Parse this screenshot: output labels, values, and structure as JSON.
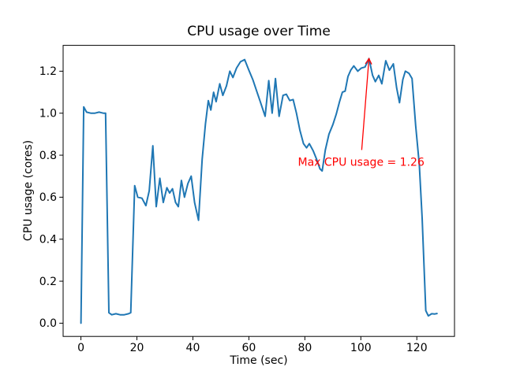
{
  "figure": {
    "background": "#ffffff"
  },
  "chart_data": {
    "type": "line",
    "title": "CPU usage over Time",
    "xlabel": "Time (sec)",
    "ylabel": "CPU usage (cores)",
    "grid": false,
    "legend": "none",
    "line_color": "#1f77b4",
    "line_width": 2,
    "xlim": [
      -6.36,
      133.46
    ],
    "ylim": [
      -0.063,
      1.323
    ],
    "xticks": {
      "values": [
        0,
        20,
        40,
        60,
        80,
        100,
        120
      ],
      "labels": [
        "0",
        "20",
        "40",
        "60",
        "80",
        "100",
        "120"
      ]
    },
    "yticks": {
      "values": [
        0.0,
        0.2,
        0.4,
        0.6,
        0.8,
        1.0,
        1.2
      ],
      "labels": [
        "0.0",
        "0.2",
        "0.4",
        "0.6",
        "0.8",
        "1.0",
        "1.2"
      ]
    },
    "series": [
      {
        "name": "CPU usage",
        "x": [
          0,
          1,
          2,
          3.5,
          5,
          6.5,
          8,
          8.8,
          10,
          11,
          12.5,
          14,
          15.5,
          17,
          17.8,
          19.2,
          20.3,
          21.8,
          23.2,
          24.4,
          25.7,
          26.9,
          28.2,
          29.4,
          30.7,
          31.7,
          32.7,
          33.8,
          34.8,
          35.9,
          37,
          38.2,
          39.4,
          40.6,
          42,
          43.3,
          44.5,
          45.5,
          46.4,
          47.4,
          48.3,
          49.6,
          50.7,
          52,
          53.2,
          54.3,
          55.6,
          57,
          58.5,
          60,
          61.4,
          62.8,
          64.2,
          65.8,
          67.1,
          68.3,
          69.5,
          70.8,
          72.2,
          73.4,
          74.6,
          75.8,
          77,
          78.2,
          79.5,
          80.6,
          81.6,
          83,
          84.2,
          85.4,
          86.2,
          87.3,
          88.6,
          90,
          91.2,
          92.4,
          93.4,
          94.4,
          95.4,
          96.4,
          97.5,
          98.9,
          100.2,
          101.5,
          102.9,
          104.2,
          105.2,
          106.4,
          107.5,
          108.9,
          110.2,
          111.6,
          112.8,
          113.8,
          115,
          115.9,
          117.2,
          118.3,
          119.6,
          120.9,
          121.9,
          123.2,
          124.1,
          125.3,
          126.4,
          127.2
        ],
        "y": [
          0,
          1.03,
          1.005,
          1,
          1,
          1.005,
          1,
          1,
          0.05,
          0.04,
          0.045,
          0.04,
          0.04,
          0.045,
          0.05,
          0.655,
          0.6,
          0.595,
          0.56,
          0.63,
          0.845,
          0.555,
          0.69,
          0.575,
          0.645,
          0.62,
          0.64,
          0.575,
          0.555,
          0.68,
          0.6,
          0.665,
          0.7,
          0.575,
          0.49,
          0.78,
          0.95,
          1.06,
          1.015,
          1.1,
          1.055,
          1.14,
          1.085,
          1.13,
          1.2,
          1.17,
          1.215,
          1.245,
          1.255,
          1.205,
          1.16,
          1.105,
          1.05,
          0.985,
          1.155,
          1,
          1.165,
          0.985,
          1.085,
          1.09,
          1.06,
          1.065,
          1,
          0.92,
          0.855,
          0.835,
          0.855,
          0.82,
          0.78,
          0.735,
          0.725,
          0.825,
          0.9,
          0.945,
          0.995,
          1.055,
          1.1,
          1.105,
          1.175,
          1.205,
          1.225,
          1.2,
          1.215,
          1.22,
          1.26,
          1.18,
          1.15,
          1.18,
          1.14,
          1.25,
          1.205,
          1.235,
          1.12,
          1.05,
          1.16,
          1.2,
          1.19,
          1.165,
          0.94,
          0.755,
          0.5,
          0.06,
          0.035,
          0.045,
          0.044,
          0.046
        ]
      }
    ],
    "annotation": {
      "text": "Max CPU usage = 1.26",
      "color": "#ff0000",
      "text_x": 77.5,
      "text_y": 0.75,
      "arrow_start_x": 100.3,
      "arrow_start_y": 0.825,
      "arrow_tip_x": 102.9,
      "arrow_tip_y": 1.26
    }
  }
}
